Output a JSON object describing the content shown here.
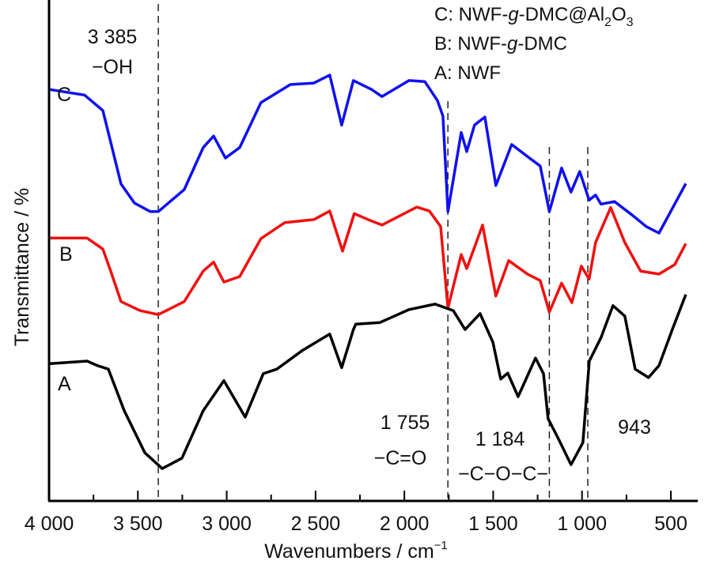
{
  "chart_data": {
    "type": "line",
    "title": "",
    "xlabel": "Wavenumbers / cm",
    "xlabel_sup": "−1",
    "ylabel": "Transmittance / %",
    "xlim": [
      4000,
      500
    ],
    "ylim": [
      0,
      100
    ],
    "x_reversed": true,
    "grid": false,
    "x_ticks": [
      4000,
      3500,
      3000,
      2500,
      2000,
      1500,
      1000,
      500
    ],
    "x_tick_labels": [
      "4 000",
      "3 500",
      "3 000",
      "2 500",
      "2 000",
      "1 500",
      "1 000",
      "500"
    ],
    "x_minor_ticks": [
      3750,
      3250,
      2750,
      2250,
      1750,
      1250,
      750
    ],
    "legend": {
      "placement": "top-right",
      "entries": [
        {
          "parts": [
            "C: NWF-",
            "g",
            "-DMC@Al",
            "2",
            "O",
            "3"
          ]
        },
        {
          "parts": [
            "B: NWF-",
            "g",
            "-DMC"
          ]
        },
        {
          "parts": [
            "A: NWF"
          ]
        }
      ]
    },
    "series": [
      {
        "name": "C",
        "label": "C",
        "color": "#1010f0",
        "points": [
          [
            3995,
            82.1
          ],
          [
            3800,
            81.0
          ],
          [
            3697,
            77.9
          ],
          [
            3653,
            71.6
          ],
          [
            3595,
            63.2
          ],
          [
            3519,
            59.4
          ],
          [
            3430,
            57.7
          ],
          [
            3385,
            57.7
          ],
          [
            3239,
            62.1
          ],
          [
            3132,
            70.5
          ],
          [
            3074,
            72.8
          ],
          [
            3007,
            68.4
          ],
          [
            2927,
            70.5
          ],
          [
            2807,
            79.5
          ],
          [
            2642,
            83.1
          ],
          [
            2509,
            83.4
          ],
          [
            2420,
            85.0
          ],
          [
            2353,
            75.0
          ],
          [
            2287,
            83.9
          ],
          [
            2184,
            82.1
          ],
          [
            2126,
            80.7
          ],
          [
            1974,
            83.9
          ],
          [
            1885,
            83.7
          ],
          [
            1814,
            79.9
          ],
          [
            1783,
            76.8
          ],
          [
            1755,
            57.7
          ],
          [
            1680,
            73.5
          ],
          [
            1649,
            69.7
          ],
          [
            1605,
            75.0
          ],
          [
            1547,
            76.6
          ],
          [
            1485,
            62.9
          ],
          [
            1396,
            71.1
          ],
          [
            1307,
            68.7
          ],
          [
            1235,
            66.8
          ],
          [
            1184,
            57.7
          ],
          [
            1115,
            66.4
          ],
          [
            1062,
            61.6
          ],
          [
            1013,
            65.7
          ],
          [
            960,
            60.0
          ],
          [
            924,
            61.0
          ],
          [
            893,
            59.2
          ],
          [
            817,
            59.7
          ],
          [
            714,
            56.9
          ],
          [
            639,
            54.7
          ],
          [
            567,
            53.4
          ],
          [
            416,
            63.3
          ]
        ]
      },
      {
        "name": "B",
        "label": "B",
        "color": "#f01010",
        "points": [
          [
            3995,
            52.4
          ],
          [
            3786,
            52.4
          ],
          [
            3697,
            50.2
          ],
          [
            3653,
            45.8
          ],
          [
            3595,
            39.7
          ],
          [
            3488,
            37.9
          ],
          [
            3385,
            37.1
          ],
          [
            3239,
            39.7
          ],
          [
            3132,
            45.8
          ],
          [
            3074,
            47.6
          ],
          [
            3016,
            43.6
          ],
          [
            2927,
            44.7
          ],
          [
            2807,
            52.3
          ],
          [
            2673,
            55.5
          ],
          [
            2509,
            56.1
          ],
          [
            2420,
            57.8
          ],
          [
            2348,
            49.8
          ],
          [
            2282,
            57.3
          ],
          [
            2184,
            55.8
          ],
          [
            2126,
            55.0
          ],
          [
            1930,
            58.6
          ],
          [
            1859,
            57.8
          ],
          [
            1796,
            54.7
          ],
          [
            1755,
            38.4
          ],
          [
            1680,
            49.1
          ],
          [
            1649,
            46.3
          ],
          [
            1560,
            55.0
          ],
          [
            1485,
            40.8
          ],
          [
            1413,
            47.9
          ],
          [
            1307,
            45.2
          ],
          [
            1235,
            43.9
          ],
          [
            1184,
            37.6
          ],
          [
            1115,
            43.4
          ],
          [
            1057,
            39.5
          ],
          [
            1004,
            46.8
          ],
          [
            960,
            44.2
          ],
          [
            924,
            51.5
          ],
          [
            839,
            58.5
          ],
          [
            759,
            51.5
          ],
          [
            670,
            45.8
          ],
          [
            567,
            45.2
          ],
          [
            478,
            47.1
          ],
          [
            416,
            51.3
          ]
        ]
      },
      {
        "name": "A",
        "label": "A",
        "color": "#000000",
        "points": [
          [
            3995,
            27.3
          ],
          [
            3786,
            27.8
          ],
          [
            3728,
            26.9
          ],
          [
            3666,
            26.2
          ],
          [
            3577,
            17.9
          ],
          [
            3461,
            9.5
          ],
          [
            3363,
            6.3
          ],
          [
            3252,
            8.4
          ],
          [
            3132,
            17.9
          ],
          [
            3016,
            23.9
          ],
          [
            2896,
            16.6
          ],
          [
            2794,
            25.3
          ],
          [
            2718,
            26.2
          ],
          [
            2571,
            30.0
          ],
          [
            2420,
            33.2
          ],
          [
            2353,
            26.5
          ],
          [
            2287,
            34.1
          ],
          [
            2273,
            35.2
          ],
          [
            2139,
            35.5
          ],
          [
            1974,
            38.1
          ],
          [
            1827,
            39.2
          ],
          [
            1725,
            37.9
          ],
          [
            1658,
            34.1
          ],
          [
            1574,
            37.3
          ],
          [
            1502,
            31.6
          ],
          [
            1458,
            24.2
          ],
          [
            1418,
            25.4
          ],
          [
            1360,
            20.7
          ],
          [
            1262,
            28.4
          ],
          [
            1217,
            25.3
          ],
          [
            1191,
            16.3
          ],
          [
            1129,
            12.0
          ],
          [
            1062,
            7.1
          ],
          [
            995,
            11.5
          ],
          [
            959,
            27.8
          ],
          [
            893,
            32.5
          ],
          [
            826,
            38.9
          ],
          [
            759,
            36.8
          ],
          [
            701,
            26.2
          ],
          [
            626,
            24.5
          ],
          [
            567,
            26.9
          ],
          [
            492,
            34.1
          ],
          [
            416,
            41.1
          ]
        ]
      }
    ],
    "reference_lines": [
      3385,
      1755,
      1184,
      943
    ],
    "annotations": [
      {
        "id": "oh-wn",
        "text": "3 385"
      },
      {
        "id": "oh-group",
        "text": "−OH"
      },
      {
        "id": "co-wn",
        "text": "1 755"
      },
      {
        "id": "co-group",
        "text": "−C=O"
      },
      {
        "id": "coc-wn",
        "text": "1 184"
      },
      {
        "id": "coc-group",
        "text": "−C−O−C−"
      },
      {
        "id": "wn-943",
        "text": "943"
      }
    ]
  }
}
